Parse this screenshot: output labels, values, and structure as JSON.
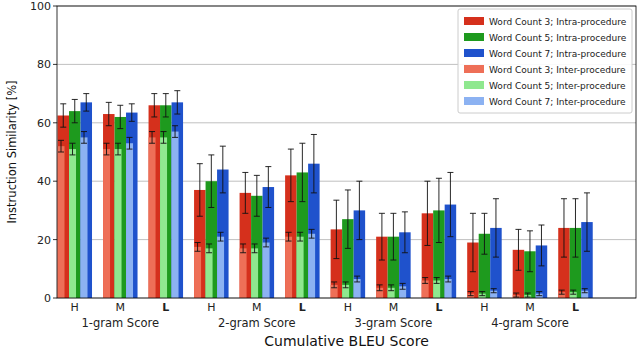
{
  "chart_data": {
    "type": "bar",
    "x_label": "Cumulative BLEU Score",
    "y_label": "Instruction Similarity [%]",
    "categories": [
      "H",
      "M",
      "L",
      "H",
      "M",
      "L",
      "H",
      "M",
      "L",
      "H",
      "M",
      "L"
    ],
    "group_labels": [
      "1-gram Score",
      "2-gram Score",
      "3-gram Score",
      "4-gram Score"
    ],
    "ylim": [
      0,
      100
    ],
    "yticks": [
      0,
      20,
      40,
      60,
      80,
      100
    ],
    "grid": true,
    "legend": "upper right",
    "series": [
      {
        "name": "Word Count 3; Intra-procedure",
        "color": "#d5301c",
        "values": [
          62.5,
          63,
          66,
          37,
          36,
          42,
          23.5,
          21,
          29,
          19,
          16.5,
          24
        ],
        "errors": [
          4,
          4,
          4,
          9,
          7,
          9,
          10,
          8,
          11,
          10,
          7,
          10
        ]
      },
      {
        "name": "Word Count 5; Intra-procedure",
        "color": "#1e9a1e",
        "values": [
          64,
          62,
          66,
          40,
          35,
          43,
          27,
          21,
          30,
          22,
          16,
          24
        ],
        "errors": [
          4,
          4,
          4,
          9,
          7,
          10,
          10,
          8,
          11,
          7,
          7,
          10
        ]
      },
      {
        "name": "Word Count 7; Intra-procedure",
        "color": "#1f52cc",
        "values": [
          67,
          63.5,
          67,
          44,
          38,
          46,
          30,
          22.5,
          32,
          24,
          18,
          26
        ],
        "errors": [
          3,
          3,
          4,
          8,
          7,
          10,
          10,
          7,
          11,
          10,
          7,
          10
        ]
      },
      {
        "name": "Word Count 3; Inter-procedure",
        "color": "#ee6f57",
        "values": [
          52,
          51,
          55,
          17.5,
          17,
          21,
          4.5,
          3.5,
          6,
          1.5,
          1,
          2
        ],
        "errors": [
          2,
          2,
          2,
          1.5,
          1.5,
          1.5,
          1,
          1,
          1,
          0.7,
          0.7,
          0.7
        ]
      },
      {
        "name": "Word Count 5; Inter-procedure",
        "color": "#8fe88f",
        "values": [
          51,
          51,
          55,
          17,
          17,
          21,
          4.5,
          3.5,
          6,
          1.5,
          1,
          2
        ],
        "errors": [
          2,
          2,
          2,
          1.5,
          1.5,
          1.5,
          1,
          1,
          1,
          0.7,
          0.7,
          0.7
        ]
      },
      {
        "name": "Word Count 7; Inter-procedure",
        "color": "#8cb2f2",
        "values": [
          55,
          53,
          57,
          21,
          19,
          22,
          6.5,
          4,
          6.5,
          2.5,
          1.5,
          2.5
        ],
        "errors": [
          2,
          2,
          2,
          1.5,
          1.5,
          1.5,
          1,
          1,
          1,
          0.7,
          0.7,
          0.7
        ]
      }
    ]
  }
}
